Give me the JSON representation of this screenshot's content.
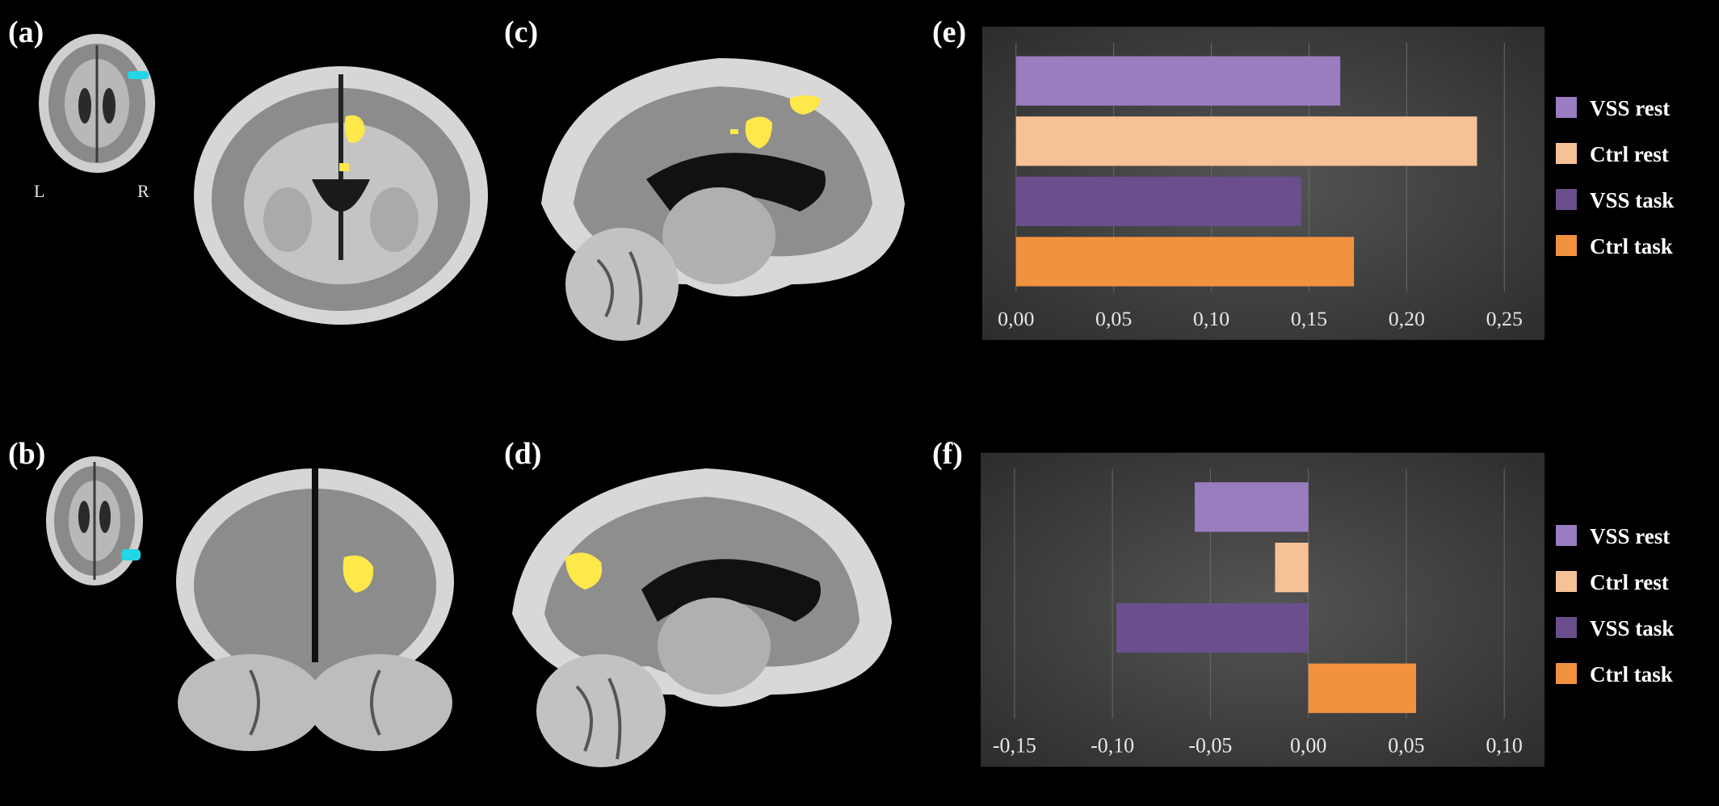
{
  "panels": {
    "a": "(a)",
    "b": "(b)",
    "c": "(c)",
    "d": "(d)",
    "e": "(e)",
    "f": "(f)"
  },
  "orientation": {
    "left": "L",
    "right": "R"
  },
  "colors": {
    "vss_rest": "#9a7cc0",
    "ctrl_rest": "#f7c196",
    "vss_task": "#6a4f8c",
    "ctrl_task": "#f2923f",
    "activation": "#ffe84a",
    "roi_marker": "#22d6e6"
  },
  "chart_data": [
    {
      "type": "bar",
      "orientation": "horizontal",
      "categories": [
        "VSS rest",
        "Ctrl rest",
        "VSS task",
        "Ctrl task"
      ],
      "values": [
        0.166,
        0.236,
        0.146,
        0.173
      ],
      "xlim": [
        0,
        0.25
      ],
      "xticks": [
        0,
        0.05,
        0.1,
        0.15,
        0.2,
        0.25
      ],
      "xtick_labels": [
        "0,00",
        "0,05",
        "0,10",
        "0,15",
        "0,20",
        "0,25"
      ],
      "legend": [
        "VSS rest",
        "Ctrl rest",
        "VSS task",
        "Ctrl task"
      ],
      "legend_position": "right",
      "grid": true
    },
    {
      "type": "bar",
      "orientation": "horizontal",
      "categories": [
        "VSS rest",
        "Ctrl rest",
        "VSS task",
        "Ctrl task"
      ],
      "values": [
        -0.058,
        -0.017,
        -0.098,
        0.055
      ],
      "xlim": [
        -0.15,
        0.1
      ],
      "xticks": [
        -0.15,
        -0.1,
        -0.05,
        0,
        0.05,
        0.1
      ],
      "xtick_labels": [
        "-0,15",
        "-0,10",
        "-0,05",
        "0,00",
        "0,05",
        "0,10"
      ],
      "legend": [
        "VSS rest",
        "Ctrl rest",
        "VSS task",
        "Ctrl task"
      ],
      "legend_position": "right",
      "grid": true
    }
  ]
}
